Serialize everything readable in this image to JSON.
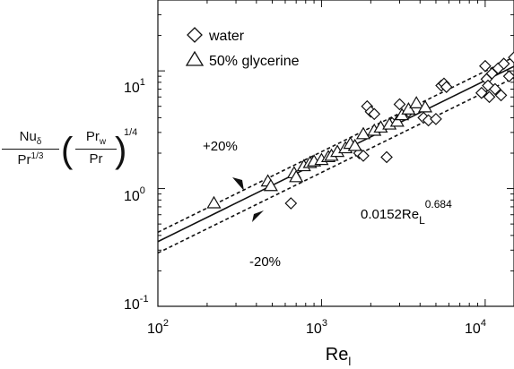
{
  "chart_data": {
    "type": "scatter",
    "x_scale": "log",
    "y_scale": "log",
    "xlim": [
      100,
      15000
    ],
    "ylim": [
      0.1,
      40
    ],
    "x_ticks": [
      {
        "value": 100,
        "base": "10",
        "exp": "2"
      },
      {
        "value": 1000,
        "base": "10",
        "exp": "3"
      },
      {
        "value": 10000,
        "base": "10",
        "exp": "4"
      }
    ],
    "y_ticks": [
      {
        "value": 0.1,
        "base": "10",
        "exp": "-1"
      },
      {
        "value": 1,
        "base": "10",
        "exp": "0"
      },
      {
        "value": 10,
        "base": "10",
        "exp": "1"
      }
    ],
    "xlabel": {
      "main": "Re",
      "sub": "l"
    },
    "ylabel": {
      "num1": "Nu",
      "num1_sub": "δ",
      "den1": "Pr",
      "den1_sup": "1/3",
      "num2": "Pr",
      "num2_sub": "w",
      "den2": "Pr",
      "power": "1/4"
    },
    "legend": {
      "placement": "top-left",
      "entries": [
        {
          "marker": "diamond",
          "label": "water"
        },
        {
          "marker": "triangle",
          "label": "50% glycerine"
        }
      ]
    },
    "annotations": {
      "plus": "+20%",
      "minus": "-20%",
      "fit_coef": "0.0152Re",
      "fit_sub": "L",
      "fit_exp": "0.684"
    },
    "fit": {
      "coef": 0.0152,
      "exp": 0.684,
      "band": 0.2
    },
    "series": [
      {
        "name": "water",
        "marker": "diamond",
        "points": [
          [
            650,
            0.75
          ],
          [
            1700,
            2.0
          ],
          [
            1800,
            1.9
          ],
          [
            1900,
            5.0
          ],
          [
            2000,
            4.5
          ],
          [
            2100,
            4.3
          ],
          [
            2500,
            1.85
          ],
          [
            2700,
            3.6
          ],
          [
            3000,
            5.2
          ],
          [
            3400,
            4.5
          ],
          [
            4200,
            4.0
          ],
          [
            4500,
            3.8
          ],
          [
            5000,
            3.9
          ],
          [
            5400,
            7.5
          ],
          [
            5600,
            7.8
          ],
          [
            5800,
            7.3
          ],
          [
            9500,
            6.5
          ],
          [
            10000,
            11.0
          ],
          [
            10200,
            8.5
          ],
          [
            10400,
            7.5
          ],
          [
            10600,
            6.0
          ],
          [
            11000,
            9.5
          ],
          [
            11500,
            7.0
          ],
          [
            12000,
            10.5
          ],
          [
            12500,
            6.2
          ],
          [
            13000,
            11.5
          ],
          [
            14000,
            9.0
          ],
          [
            15000,
            13.0
          ]
        ]
      },
      {
        "name": "50% glycerine",
        "marker": "triangle",
        "points": [
          [
            220,
            0.75
          ],
          [
            470,
            1.15
          ],
          [
            490,
            1.05
          ],
          [
            680,
            1.35
          ],
          [
            700,
            1.25
          ],
          [
            780,
            1.55
          ],
          [
            850,
            1.65
          ],
          [
            900,
            1.7
          ],
          [
            1000,
            1.75
          ],
          [
            1100,
            1.85
          ],
          [
            1150,
            1.9
          ],
          [
            1250,
            2.05
          ],
          [
            1400,
            2.2
          ],
          [
            1500,
            2.4
          ],
          [
            1600,
            2.3
          ],
          [
            1800,
            2.9
          ],
          [
            2100,
            3.1
          ],
          [
            2300,
            3.3
          ],
          [
            2600,
            3.5
          ],
          [
            2900,
            3.7
          ],
          [
            3100,
            4.2
          ],
          [
            3400,
            4.7
          ],
          [
            3800,
            5.3
          ],
          [
            4300,
            4.9
          ]
        ]
      }
    ]
  }
}
